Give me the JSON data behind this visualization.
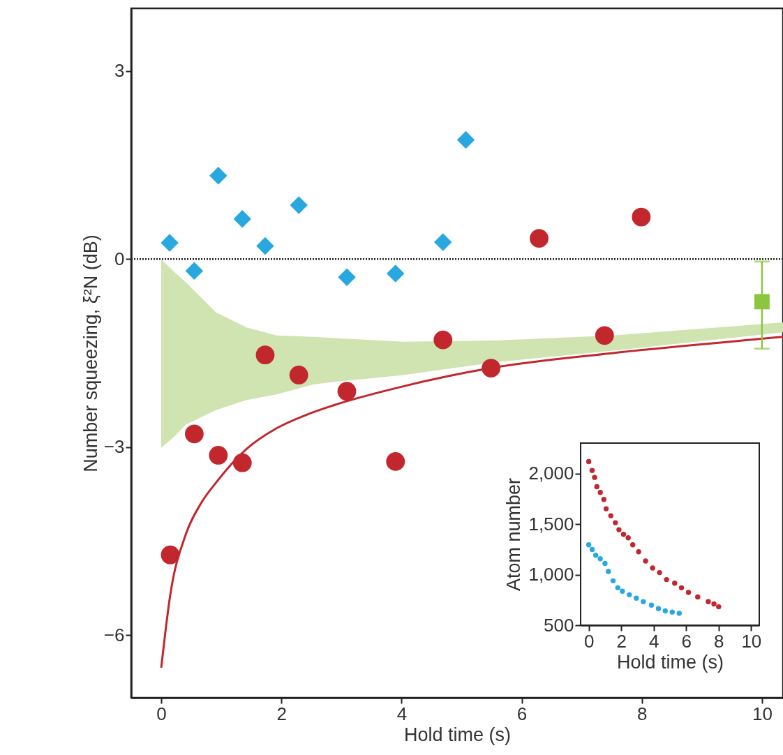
{
  "chart_data": [
    {
      "type": "scatter",
      "xlabel": "Hold time (s)",
      "ylabel": "Number squeezing, ξ²N (dB)",
      "xlim": [
        -0.5,
        10.35
      ],
      "ylim": [
        -7,
        4
      ],
      "xticks": [
        0,
        2,
        4,
        6,
        8,
        10
      ],
      "yticks": [
        -6,
        -3,
        0,
        3
      ],
      "ref_lines": [
        {
          "axis": "y",
          "value": 0,
          "line_style": "dotted",
          "color": "#222222"
        }
      ],
      "series": [
        {
          "type": "line",
          "color": "#cfe4b0",
          "x": [
            0,
            0.21,
            0.41,
            0.91,
            1.42,
            1.92,
            2.53,
            2.88,
            4.03,
            5.53,
            7.52,
            10.35
          ],
          "values": [
            null,
            null,
            null,
            null,
            null,
            null,
            null,
            null,
            null,
            null,
            null,
            null
          ],
          "upper": [
            0,
            -0.2,
            -0.37,
            -0.85,
            -1.09,
            -1.22,
            -1.24,
            -1.26,
            -1.32,
            -1.3,
            -1.22,
            -1.01
          ],
          "lower": [
            -3.01,
            -2.84,
            -2.64,
            -2.41,
            -2.25,
            -2.16,
            -2.0,
            -1.96,
            -1.85,
            -1.65,
            -1.46,
            -1.17
          ]
        },
        {
          "type": "line",
          "color": "#c1272d",
          "line_style": "solid",
          "x": [
            0,
            0.15,
            0.41,
            0.66,
            0.91,
            1.42,
            1.92,
            2.43,
            2.88,
            4.03,
            5.48,
            7.52,
            10.02,
            10.35
          ],
          "values": [
            -6.52,
            -5.36,
            -4.39,
            -3.9,
            -3.57,
            -3.03,
            -2.7,
            -2.48,
            -2.33,
            -2.03,
            -1.74,
            -1.5,
            -1.27,
            -1.24
          ]
        },
        {
          "type": "scatter",
          "color": "#29a8e0",
          "marker": "diamond",
          "x": [
            0.14,
            0.55,
            0.95,
            1.35,
            1.73,
            2.29,
            3.09,
            3.9,
            4.69,
            5.07
          ],
          "values": [
            0.26,
            -0.19,
            1.33,
            0.64,
            0.21,
            0.86,
            -0.29,
            -0.23,
            0.27,
            1.9
          ]
        },
        {
          "type": "scatter",
          "color": "#c1272d",
          "marker": "circle",
          "x": [
            0.15,
            0.55,
            0.95,
            1.35,
            1.73,
            2.29,
            3.09,
            3.9,
            4.69,
            5.49,
            6.29,
            7.38,
            7.99
          ],
          "values": [
            -4.72,
            -2.79,
            -3.13,
            -3.25,
            -1.53,
            -1.85,
            -2.11,
            -3.23,
            -1.29,
            -1.74,
            0.33,
            -1.22,
            0.67
          ]
        },
        {
          "type": "scatter",
          "color": "#8cc63f",
          "marker": "square",
          "x": [
            10
          ],
          "values": [
            -0.68
          ],
          "errors": [
            [
              -1.43,
              -0.04
            ]
          ]
        }
      ]
    },
    {
      "type": "scatter",
      "xlabel": "Hold time (s)",
      "ylabel": "Atom number",
      "xlim": [
        -0.5,
        10.5
      ],
      "ylim": [
        500,
        2300
      ],
      "xticks": [
        0,
        2,
        4,
        6,
        8,
        10
      ],
      "yticks": [
        500,
        {
          "value": 1000,
          "label": "1,000"
        },
        {
          "value": 1500,
          "label": "1,500"
        },
        {
          "value": 2000,
          "label": "2,000"
        }
      ],
      "marker": "circle",
      "series": [
        {
          "color": "#c1272d",
          "x": [
            0,
            0.21,
            0.36,
            0.5,
            0.71,
            0.93,
            1.07,
            1.36,
            1.64,
            1.86,
            2.14,
            2.43,
            2.71,
            3.07,
            3.5,
            3.93,
            4.36,
            4.79,
            5.29,
            5.71,
            6.14,
            6.71,
            7.36,
            7.71,
            8.0
          ],
          "values": [
            2117,
            2030,
            1961,
            1869,
            1812,
            1743,
            1651,
            1582,
            1513,
            1444,
            1398,
            1364,
            1295,
            1226,
            1134,
            1066,
            1020,
            951,
            916,
            870,
            824,
            779,
            733,
            710,
            682
          ]
        },
        {
          "color": "#29a8e0",
          "x": [
            0,
            0.21,
            0.43,
            0.71,
            1.0,
            1.21,
            1.5,
            1.79,
            2.07,
            2.5,
            2.93,
            3.36,
            3.86,
            4.29,
            4.71,
            5.14,
            5.57
          ],
          "values": [
            1295,
            1249,
            1192,
            1157,
            1111,
            1031,
            939,
            870,
            836,
            801,
            767,
            733,
            698,
            664,
            641,
            629,
            618
          ]
        }
      ]
    }
  ]
}
